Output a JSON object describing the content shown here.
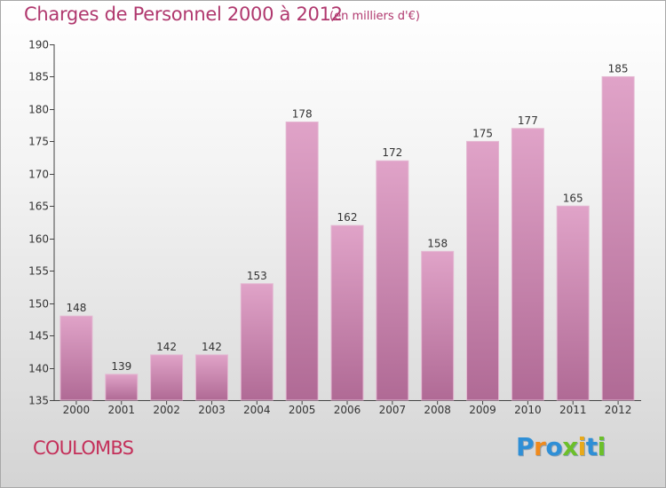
{
  "header": {
    "title": "Charges de Personnel 2000 à 2012",
    "subtitle": "(en milliers d'€)"
  },
  "footer": {
    "commune": "COULOMBS",
    "logo_text": "Proxiti",
    "logo_letters": [
      {
        "char": "P",
        "color": "#2f8fd6"
      },
      {
        "char": "r",
        "color": "#f08a1c"
      },
      {
        "char": "o",
        "color": "#2f8fd6"
      },
      {
        "char": "x",
        "color": "#6cbf2a"
      },
      {
        "char": "i",
        "color": "#e8a91a"
      },
      {
        "char": "t",
        "color": "#2f8fd6"
      },
      {
        "char": "i",
        "color": "#6cbf2a"
      }
    ]
  },
  "colors": {
    "title": "#b0386e",
    "commune": "#c4305a",
    "bar_top": "#e0a3c8",
    "bar_bottom": "#b06a95"
  },
  "chart_data": {
    "type": "bar",
    "title": "Charges de Personnel 2000 à 2012",
    "subtitle": "(en milliers d'€)",
    "categories": [
      "2000",
      "2001",
      "2002",
      "2003",
      "2004",
      "2005",
      "2006",
      "2007",
      "2008",
      "2009",
      "2010",
      "2011",
      "2012"
    ],
    "values": [
      148,
      139,
      142,
      142,
      153,
      178,
      162,
      172,
      158,
      175,
      177,
      165,
      185
    ],
    "ylim": [
      135,
      190
    ],
    "yticks": [
      135,
      140,
      145,
      150,
      155,
      160,
      165,
      170,
      175,
      180,
      185,
      190
    ],
    "grid": false,
    "xlabel": "",
    "ylabel": ""
  }
}
